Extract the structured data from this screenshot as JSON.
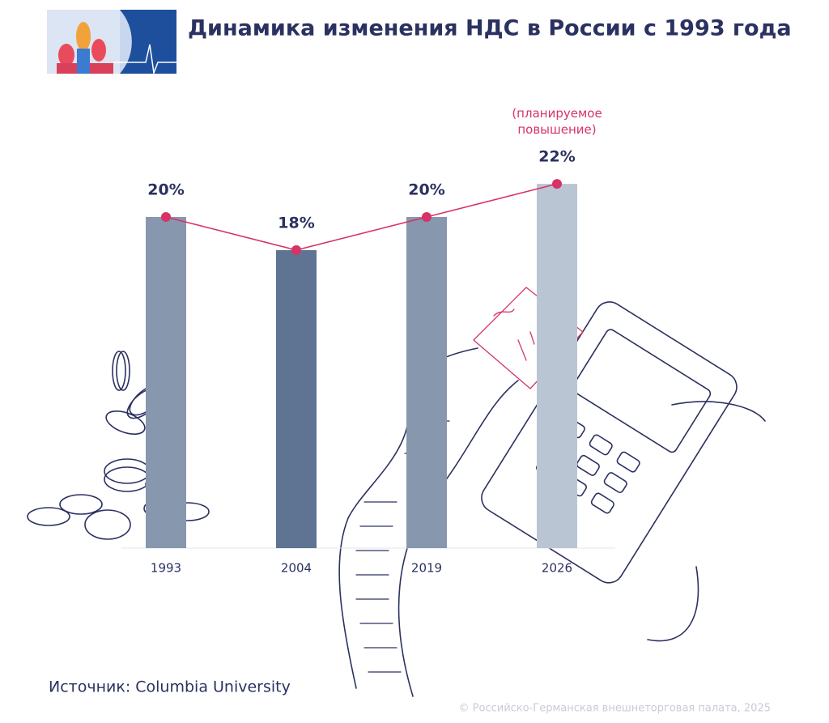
{
  "chart_data": {
    "type": "bar",
    "title": "Динамика изменения НДС в России с 1993 года",
    "categories": [
      "1993",
      "2004",
      "2019",
      "2026"
    ],
    "values": [
      20,
      18,
      20,
      22
    ],
    "value_labels": [
      "20%",
      "18%",
      "20%",
      "22%"
    ],
    "colors": [
      "#8797ae",
      "#5f7392",
      "#8797ae",
      "#bac5d4"
    ],
    "line_color": "#d63468",
    "annotation": "(планируемое повышение)",
    "source": "Источник: Columbia University",
    "copyright": "© Российско-Германская внешнеторговая палата, 2025"
  }
}
